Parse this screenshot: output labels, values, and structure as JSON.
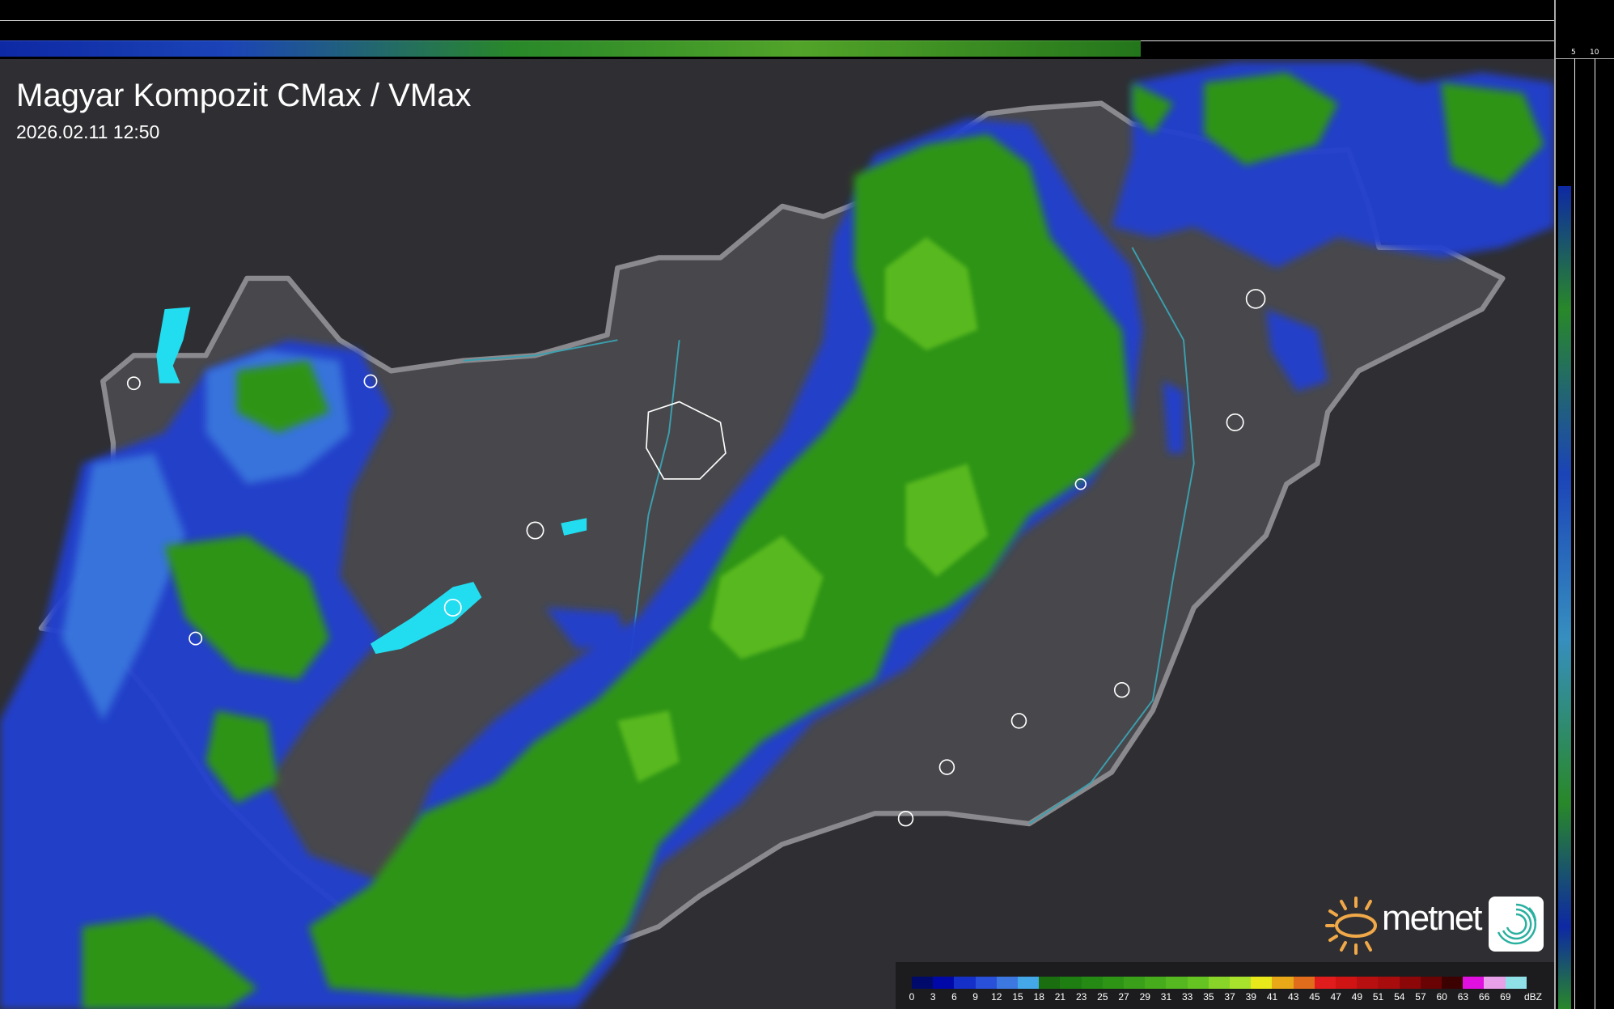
{
  "header": {
    "title": "Magyar Kompozit CMax / VMax",
    "timestamp": "2026.02.11 12:50"
  },
  "profile_axes": {
    "top_labels": [
      "10",
      "5"
    ],
    "right_labels": [
      "5",
      "10"
    ]
  },
  "logo": {
    "brand": "metnet",
    "accent_color": "#f0a848"
  },
  "legend": {
    "unit": "dBZ",
    "labels": [
      "0",
      "3",
      "6",
      "9",
      "12",
      "15",
      "18",
      "21",
      "23",
      "25",
      "27",
      "29",
      "31",
      "33",
      "35",
      "37",
      "39",
      "41",
      "43",
      "45",
      "47",
      "49",
      "51",
      "54",
      "57",
      "60",
      "63",
      "66",
      "69"
    ],
    "colors": [
      "#000a6a",
      "#0008a8",
      "#1430c8",
      "#2850d8",
      "#3c78e0",
      "#44a8e8",
      "#1a6e10",
      "#1e7e12",
      "#258a14",
      "#2e9416",
      "#3aa01a",
      "#46ac1c",
      "#56b820",
      "#66c422",
      "#88d428",
      "#a8e22c",
      "#e8e81a",
      "#e8a818",
      "#e06c1c",
      "#e01c1c",
      "#d01414",
      "#b81010",
      "#a80c0c",
      "#8c0808",
      "#6a0404",
      "#3c0202",
      "#e010e0",
      "#e8a0e8",
      "#90e0e8"
    ]
  }
}
